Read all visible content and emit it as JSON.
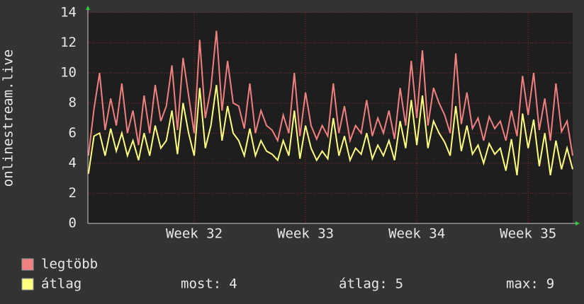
{
  "chart_data": {
    "type": "line",
    "y_label": "onlinestream.live",
    "xlim": [
      31.045,
      35.4
    ],
    "xticks": [
      {
        "value": 32,
        "label": "Week 32"
      },
      {
        "value": 33,
        "label": "Week 33"
      },
      {
        "value": 34,
        "label": "Week 34"
      },
      {
        "value": 35,
        "label": "Week 35"
      }
    ],
    "ylim": [
      0,
      14
    ],
    "yticks": [
      0,
      2,
      4,
      6,
      8,
      10,
      12,
      14
    ],
    "grid": true,
    "x": [
      31.05,
      31.1,
      31.15,
      31.2,
      31.25,
      31.3,
      31.35,
      31.4,
      31.45,
      31.5,
      31.55,
      31.6,
      31.65,
      31.7,
      31.75,
      31.8,
      31.85,
      31.9,
      31.95,
      32.0,
      32.05,
      32.1,
      32.15,
      32.2,
      32.25,
      32.3,
      32.35,
      32.4,
      32.45,
      32.5,
      32.55,
      32.6,
      32.65,
      32.7,
      32.75,
      32.8,
      32.85,
      32.9,
      32.95,
      33.0,
      33.05,
      33.1,
      33.15,
      33.2,
      33.25,
      33.3,
      33.35,
      33.4,
      33.45,
      33.5,
      33.55,
      33.6,
      33.65,
      33.7,
      33.75,
      33.8,
      33.85,
      33.9,
      33.95,
      34.0,
      34.05,
      34.1,
      34.15,
      34.2,
      34.25,
      34.3,
      34.35,
      34.4,
      34.45,
      34.5,
      34.55,
      34.6,
      34.65,
      34.7,
      34.75,
      34.8,
      34.85,
      34.9,
      34.95,
      35.0,
      35.05,
      35.1,
      35.15,
      35.2,
      35.25,
      35.3,
      35.35,
      35.4
    ],
    "series": [
      {
        "name": "legtöbb",
        "color": "#f08080",
        "values": [
          4.5,
          7.6,
          10,
          6.2,
          8.3,
          6.5,
          9.3,
          6,
          7.5,
          5.2,
          8.5,
          6,
          9.2,
          6.8,
          7.8,
          10.5,
          6.2,
          11,
          8.5,
          6,
          12.2,
          7,
          9,
          12.8,
          7.5,
          10.8,
          8,
          7.8,
          6.3,
          9.3,
          6,
          7.5,
          6.5,
          6.2,
          5.5,
          7.2,
          6,
          10,
          5.8,
          8.7,
          6.5,
          5.6,
          6.5,
          5.8,
          9.3,
          6,
          7.8,
          5.5,
          6.5,
          6,
          8.2,
          5.8,
          7,
          6,
          7.5,
          5.6,
          9,
          6.5,
          10.8,
          7,
          11.5,
          6.5,
          9,
          8,
          7.2,
          6,
          11.3,
          6.6,
          8.7,
          6.3,
          7,
          5.5,
          7.1,
          6.3,
          6.8,
          5.5,
          7.5,
          5.8,
          9.8,
          7.2,
          10,
          6.2,
          8.3,
          5.5,
          9.3,
          6.1,
          6.8,
          4.5
        ]
      },
      {
        "name": "átlag",
        "color": "#ffff80",
        "values": [
          3.3,
          5.8,
          6,
          4.5,
          6.3,
          4.8,
          6,
          4.5,
          5.5,
          4.2,
          6,
          4.5,
          6.5,
          5,
          5.5,
          7.5,
          4.6,
          8,
          6,
          4.5,
          9,
          5,
          6.5,
          9.2,
          5.5,
          7.8,
          6,
          5.5,
          4.5,
          6.3,
          4.5,
          5.5,
          4.8,
          4.6,
          4.2,
          5.5,
          4.5,
          7.5,
          4.3,
          6.5,
          5,
          4.2,
          4.8,
          4.3,
          7,
          4.5,
          5.8,
          4.2,
          5,
          4.6,
          6,
          4.3,
          5.2,
          4.5,
          5.5,
          4.2,
          6.8,
          5,
          8.2,
          5.2,
          8.5,
          5,
          6.8,
          6,
          5.4,
          4.5,
          7.8,
          4.8,
          6.5,
          4.6,
          5.2,
          4,
          5.3,
          4.6,
          5,
          3.5,
          5.6,
          3.2,
          7.3,
          5,
          6.9,
          3.8,
          6,
          3.2,
          5.5,
          3.6,
          5,
          3.6
        ]
      }
    ],
    "stats": [
      {
        "label": "most:",
        "value": 4
      },
      {
        "label": "átlag:",
        "value": 5
      },
      {
        "label": "max:",
        "value": 9
      }
    ]
  }
}
